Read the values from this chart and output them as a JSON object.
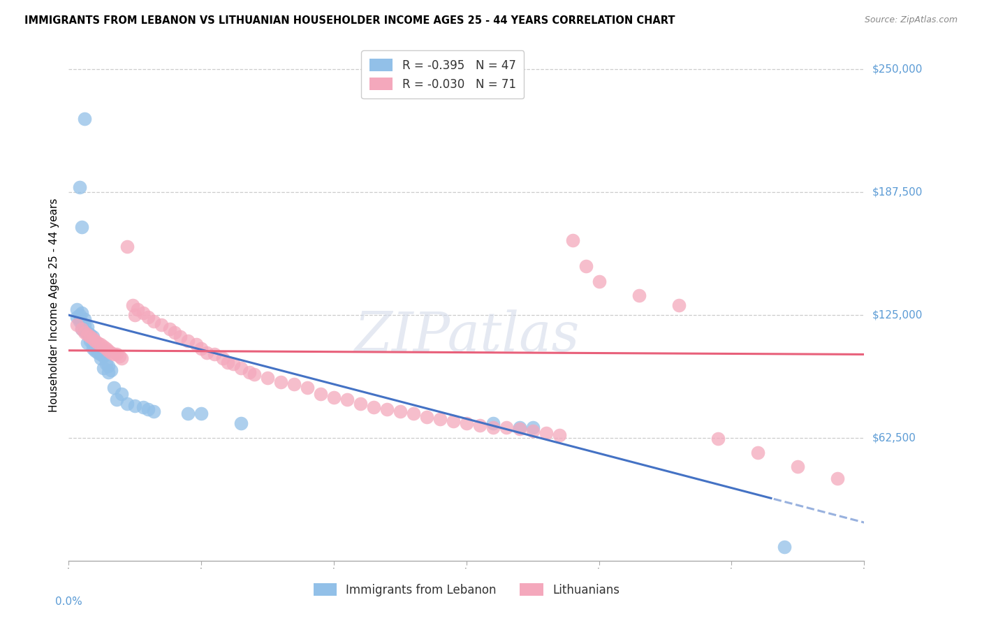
{
  "title": "IMMIGRANTS FROM LEBANON VS LITHUANIAN HOUSEHOLDER INCOME AGES 25 - 44 YEARS CORRELATION CHART",
  "source": "Source: ZipAtlas.com",
  "ylabel": "Householder Income Ages 25 - 44 years",
  "y_tick_labels": [
    "$62,500",
    "$125,000",
    "$187,500",
    "$250,000"
  ],
  "y_tick_values": [
    62500,
    125000,
    187500,
    250000
  ],
  "y_min": 0,
  "y_max": 260000,
  "x_min": 0.0,
  "x_max": 0.3,
  "legend_blue_r": "-0.395",
  "legend_blue_n": "47",
  "legend_pink_r": "-0.030",
  "legend_pink_n": "71",
  "watermark": "ZIPatlas",
  "blue_color": "#92C0E8",
  "pink_color": "#F4A8BC",
  "blue_line_color": "#4472C4",
  "pink_line_color": "#E8607A",
  "tick_color": "#5B9BD5",
  "grid_color": "#CCCCCC",
  "blue_scatter_x": [
    0.006,
    0.004,
    0.005,
    0.003,
    0.005,
    0.004,
    0.003,
    0.006,
    0.004,
    0.005,
    0.006,
    0.007,
    0.005,
    0.006,
    0.007,
    0.008,
    0.009,
    0.008,
    0.007,
    0.009,
    0.01,
    0.009,
    0.01,
    0.011,
    0.012,
    0.013,
    0.012,
    0.014,
    0.015,
    0.013,
    0.016,
    0.015,
    0.017,
    0.018,
    0.02,
    0.022,
    0.025,
    0.028,
    0.03,
    0.032,
    0.045,
    0.05,
    0.065,
    0.16,
    0.17,
    0.175,
    0.27
  ],
  "blue_scatter_y": [
    225000,
    190000,
    170000,
    128000,
    126000,
    125000,
    124000,
    123000,
    122000,
    121000,
    120000,
    119000,
    118000,
    117000,
    116000,
    115000,
    114000,
    112000,
    111000,
    110000,
    109000,
    108000,
    107000,
    106000,
    105000,
    104000,
    103000,
    100000,
    99000,
    98000,
    97000,
    96000,
    88000,
    82000,
    85000,
    80000,
    79000,
    78000,
    77000,
    76000,
    75000,
    75000,
    70000,
    70000,
    68000,
    68000,
    7000
  ],
  "pink_scatter_x": [
    0.003,
    0.005,
    0.006,
    0.007,
    0.008,
    0.009,
    0.01,
    0.011,
    0.012,
    0.013,
    0.014,
    0.015,
    0.016,
    0.017,
    0.018,
    0.019,
    0.02,
    0.022,
    0.024,
    0.025,
    0.026,
    0.028,
    0.03,
    0.032,
    0.035,
    0.038,
    0.04,
    0.042,
    0.045,
    0.048,
    0.05,
    0.052,
    0.055,
    0.058,
    0.06,
    0.062,
    0.065,
    0.068,
    0.07,
    0.075,
    0.08,
    0.085,
    0.09,
    0.095,
    0.1,
    0.105,
    0.11,
    0.115,
    0.12,
    0.125,
    0.13,
    0.135,
    0.14,
    0.145,
    0.15,
    0.155,
    0.16,
    0.165,
    0.17,
    0.175,
    0.18,
    0.185,
    0.19,
    0.195,
    0.2,
    0.215,
    0.23,
    0.245,
    0.26,
    0.275,
    0.29
  ],
  "pink_scatter_y": [
    120000,
    118000,
    116000,
    115000,
    114000,
    113000,
    112000,
    111000,
    110000,
    109000,
    108000,
    107000,
    106000,
    105000,
    105000,
    104000,
    103000,
    160000,
    130000,
    125000,
    128000,
    126000,
    124000,
    122000,
    120000,
    118000,
    116000,
    114000,
    112000,
    110000,
    108000,
    106000,
    105000,
    103000,
    101000,
    100000,
    98000,
    96000,
    95000,
    93000,
    91000,
    90000,
    88000,
    85000,
    83000,
    82000,
    80000,
    78000,
    77000,
    76000,
    75000,
    73000,
    72000,
    71000,
    70000,
    69000,
    68000,
    68000,
    67000,
    66000,
    65000,
    64000,
    163000,
    150000,
    142000,
    135000,
    130000,
    62000,
    55000,
    48000,
    42000
  ]
}
